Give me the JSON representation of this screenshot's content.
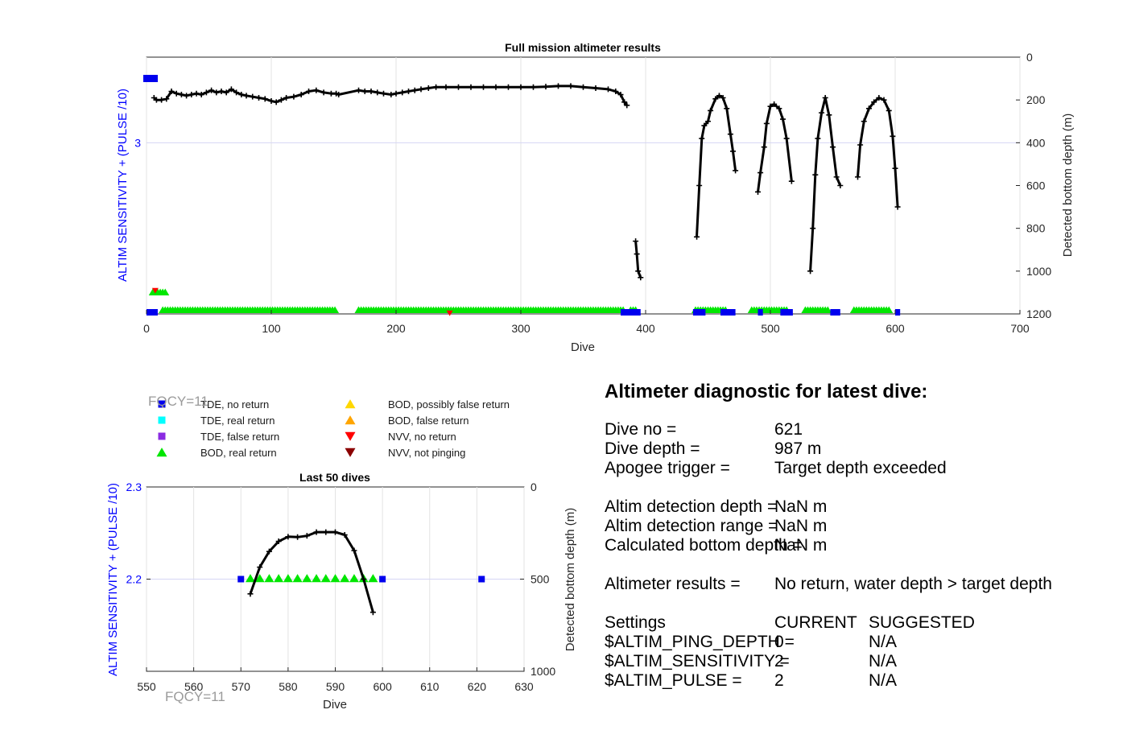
{
  "chart_data": [
    {
      "type": "scatter",
      "title": "Full mission altimeter results",
      "xlabel": "Dive",
      "ylabel": "ALTIM SENSITIVITY + (PULSE /10)",
      "ylabel_right": "Detected bottom depth (m)",
      "xlim": [
        0,
        700
      ],
      "xticks": [
        "0",
        "100",
        "200",
        "300",
        "400",
        "500",
        "600",
        "700"
      ],
      "yticks_left": [
        "3"
      ],
      "yticks_right": [
        "0",
        "200",
        "400",
        "600",
        "800",
        "1000",
        "1200"
      ],
      "ylim_right": [
        1200,
        0
      ],
      "grid": true,
      "depth_segments": [
        {
          "name": "",
          "points": [
            [
              6,
              190
            ],
            [
              8,
              200
            ],
            [
              12,
              200
            ],
            [
              16,
              195
            ],
            [
              20,
              160
            ],
            [
              24,
              170
            ],
            [
              28,
              175
            ],
            [
              32,
              180
            ],
            [
              36,
              175
            ],
            [
              40,
              170
            ],
            [
              44,
              175
            ],
            [
              48,
              165
            ],
            [
              52,
              155
            ],
            [
              56,
              165
            ],
            [
              60,
              160
            ],
            [
              64,
              165
            ],
            [
              68,
              150
            ],
            [
              72,
              165
            ],
            [
              76,
              175
            ],
            [
              80,
              180
            ],
            [
              85,
              185
            ],
            [
              90,
              190
            ],
            [
              95,
              195
            ],
            [
              100,
              205
            ],
            [
              104,
              210
            ],
            [
              108,
              200
            ],
            [
              112,
              190
            ],
            [
              118,
              185
            ],
            [
              124,
              175
            ],
            [
              130,
              160
            ],
            [
              136,
              155
            ],
            [
              142,
              165
            ],
            [
              148,
              170
            ],
            [
              152,
              170
            ],
            [
              154,
              175
            ],
            [
              170,
              155
            ],
            [
              175,
              160
            ],
            [
              180,
              160
            ],
            [
              185,
              165
            ],
            [
              190,
              170
            ],
            [
              196,
              175
            ],
            [
              200,
              170
            ],
            [
              205,
              165
            ],
            [
              210,
              160
            ],
            [
              215,
              155
            ],
            [
              220,
              150
            ],
            [
              226,
              145
            ],
            [
              232,
              140
            ],
            [
              240,
              140
            ],
            [
              250,
              140
            ],
            [
              260,
              140
            ],
            [
              270,
              140
            ],
            [
              280,
              140
            ],
            [
              290,
              140
            ],
            [
              300,
              140
            ],
            [
              310,
              140
            ],
            [
              320,
              138
            ],
            [
              330,
              135
            ],
            [
              340,
              135
            ],
            [
              350,
              140
            ],
            [
              360,
              145
            ],
            [
              370,
              150
            ],
            [
              376,
              160
            ],
            [
              380,
              175
            ],
            [
              383,
              210
            ],
            [
              385,
              225
            ]
          ]
        },
        {
          "name": "",
          "points": [
            [
              392,
              860
            ],
            [
              393,
              920
            ],
            [
              394,
              1000
            ],
            [
              396,
              1030
            ]
          ]
        },
        {
          "name": "",
          "points": [
            [
              441,
              840
            ],
            [
              443,
              600
            ],
            [
              445,
              380
            ],
            [
              447,
              320
            ],
            [
              450,
              300
            ],
            [
              452,
              250
            ],
            [
              456,
              195
            ],
            [
              459,
              180
            ],
            [
              462,
              190
            ],
            [
              465,
              240
            ],
            [
              468,
              360
            ],
            [
              470,
              440
            ],
            [
              472,
              530
            ]
          ]
        },
        {
          "name": "",
          "points": [
            [
              490,
              630
            ],
            [
              492,
              540
            ],
            [
              495,
              420
            ],
            [
              497,
              310
            ],
            [
              500,
              230
            ],
            [
              503,
              220
            ],
            [
              507,
              240
            ],
            [
              510,
              290
            ],
            [
              513,
              380
            ],
            [
              517,
              580
            ]
          ]
        },
        {
          "name": "",
          "points": [
            [
              532,
              1000
            ],
            [
              534,
              800
            ],
            [
              536,
              550
            ],
            [
              538,
              380
            ],
            [
              541,
              260
            ],
            [
              544,
              190
            ],
            [
              547,
              270
            ],
            [
              550,
              420
            ],
            [
              553,
              560
            ],
            [
              556,
              600
            ]
          ]
        },
        {
          "name": "",
          "points": [
            [
              570,
              560
            ],
            [
              572,
              410
            ],
            [
              575,
              300
            ],
            [
              579,
              240
            ],
            [
              583,
              210
            ],
            [
              587,
              190
            ],
            [
              591,
              200
            ],
            [
              595,
              250
            ],
            [
              598,
              370
            ],
            [
              600,
              520
            ],
            [
              602,
              700
            ]
          ]
        }
      ],
      "tde_no_return_xranges": [
        [
          0,
          9
        ],
        [
          380,
          396
        ],
        [
          438,
          448
        ],
        [
          460,
          472
        ],
        [
          490,
          494
        ],
        [
          508,
          518
        ],
        [
          548,
          556
        ],
        [
          600,
          604
        ]
      ],
      "bod_real_return_xranges": [
        [
          13,
          152
        ],
        [
          170,
          383
        ],
        [
          388,
          392
        ],
        [
          440,
          465
        ],
        [
          485,
          514
        ],
        [
          528,
          547
        ],
        [
          567,
          596
        ]
      ],
      "upper_cluster_dives": [
        5,
        16
      ],
      "nvv_no_return_dives": [
        7,
        243
      ]
    },
    {
      "type": "scatter",
      "title": "Last 50 dives",
      "xlabel": "Dive",
      "ylabel": "ALTIM SENSITIVITY + (PULSE /10)",
      "ylabel_right": "Detected bottom depth (m)",
      "xlim": [
        550,
        630
      ],
      "ylim_left": [
        2.1,
        2.3
      ],
      "ylim_right": [
        1000,
        0
      ],
      "xticks": [
        "550",
        "560",
        "570",
        "580",
        "590",
        "600",
        "610",
        "620",
        "630"
      ],
      "yticks_left": [
        "2.2",
        "2.3"
      ],
      "yticks_right": [
        "0",
        "500",
        "1000"
      ],
      "grid": true,
      "depth_points": [
        [
          572,
          580
        ],
        [
          574,
          435
        ],
        [
          576,
          350
        ],
        [
          578,
          295
        ],
        [
          580,
          270
        ],
        [
          582,
          272
        ],
        [
          584,
          265
        ],
        [
          586,
          245
        ],
        [
          588,
          245
        ],
        [
          590,
          245
        ],
        [
          592,
          260
        ],
        [
          594,
          345
        ],
        [
          596,
          500
        ],
        [
          598,
          680
        ]
      ],
      "tde_no_return_dives": [
        570,
        600,
        621
      ],
      "bod_real_return_dives": [
        572,
        574,
        576,
        578,
        580,
        582,
        584,
        586,
        588,
        590,
        592,
        594,
        596,
        598
      ]
    }
  ],
  "colors": {
    "tde_no_return": "#0000ee",
    "tde_real_return": "#00ffff",
    "tde_false_return": "#8a2be2",
    "bod_real_return": "#00e600",
    "bod_possibly_false": "#ffd700",
    "bod_false": "#ffa500",
    "nvv_no_return": "#ff0000",
    "nvv_not_pinging": "#8b0000",
    "left_axis": "#0000ff",
    "depth_line": "#000000"
  },
  "fqcy_labels": [
    "FQCY=11",
    "FQCY=11"
  ],
  "legend": {
    "left": [
      {
        "icon": "square",
        "color_key": "tde_no_return",
        "label": "TDE, no return"
      },
      {
        "icon": "square",
        "color_key": "tde_real_return",
        "label": "TDE, real return"
      },
      {
        "icon": "square",
        "color_key": "tde_false_return",
        "label": "TDE, false return"
      },
      {
        "icon": "triangle-up",
        "color_key": "bod_real_return",
        "label": "BOD, real return"
      }
    ],
    "right": [
      {
        "icon": "triangle-up",
        "color_key": "bod_possibly_false",
        "label": "BOD, possibly false return"
      },
      {
        "icon": "triangle-up",
        "color_key": "bod_false",
        "label": "BOD, false return"
      },
      {
        "icon": "triangle-down",
        "color_key": "nvv_no_return",
        "label": "NVV, no return"
      },
      {
        "icon": "triangle-down",
        "color_key": "nvv_not_pinging",
        "label": "NVV, not pinging"
      }
    ]
  },
  "diagnostic": {
    "heading": "Altimeter diagnostic for latest dive:",
    "rows": [
      {
        "label": "Dive no =",
        "value": "621"
      },
      {
        "label": "Dive depth =",
        "value": "987 m"
      },
      {
        "label": "Apogee trigger =",
        "value": "Target depth exceeded"
      },
      {
        "label": "Altim detection depth =",
        "value": "NaN m"
      },
      {
        "label": "Altim detection range =",
        "value": "NaN m"
      },
      {
        "label": "Calculated bottom depth =",
        "value": "NaN m"
      },
      {
        "label": "Altimeter results =",
        "value": "No return, water depth > target depth"
      }
    ],
    "settings": {
      "label": "Settings",
      "current_header": "CURRENT",
      "suggested_header": "SUGGESTED",
      "rows": [
        {
          "label": "$ALTIM_PING_DEPTH =",
          "current": "0",
          "suggested": "N/A"
        },
        {
          "label": "$ALTIM_SENSITIVITY =",
          "current": "2",
          "suggested": "N/A"
        },
        {
          "label": "$ALTIM_PULSE =",
          "current": "2",
          "suggested": "N/A"
        }
      ]
    }
  }
}
